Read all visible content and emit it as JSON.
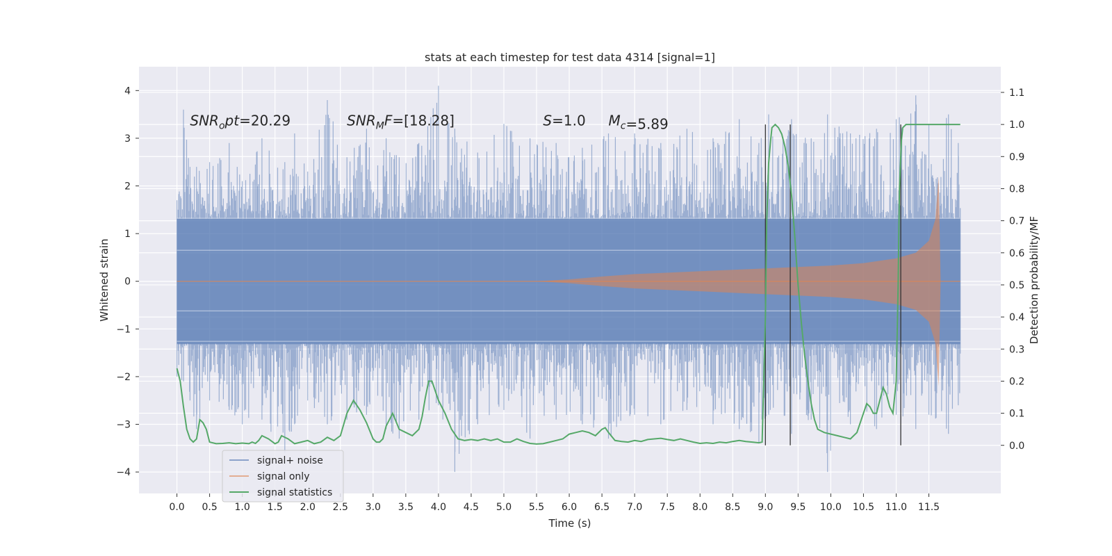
{
  "chart_data": {
    "type": "line",
    "title": "stats at each timestep for test data 4314 [signal=1]",
    "xlabel": "Time (s)",
    "ylabel": "Whitened strain",
    "y2label": "Detection probability/MF",
    "xlim": [
      -0.58,
      12.6
    ],
    "ylim": [
      -4.45,
      4.5
    ],
    "y2lim": [
      -0.15,
      1.18
    ],
    "x_ticks": [
      0.0,
      0.5,
      1.0,
      1.5,
      2.0,
      2.5,
      3.0,
      3.5,
      4.0,
      4.5,
      5.0,
      5.5,
      6.0,
      6.5,
      7.0,
      7.5,
      8.0,
      8.5,
      9.0,
      9.5,
      10.0,
      10.5,
      11.0,
      11.5
    ],
    "x_tick_labels": [
      "0.0",
      "0.5",
      "1.0",
      "1.5",
      "2.0",
      "2.5",
      "3.0",
      "3.5",
      "4.0",
      "4.5",
      "5.0",
      "5.5",
      "6.0",
      "6.5",
      "7.0",
      "7.5",
      "8.0",
      "8.5",
      "9.0",
      "9.5",
      "10.0",
      "10.5",
      "11.0",
      "11.5"
    ],
    "y_ticks": [
      -4,
      -3,
      -2,
      -1,
      0,
      1,
      2,
      3,
      4
    ],
    "y_tick_labels": [
      "−4",
      "−3",
      "−2",
      "−1",
      "0",
      "1",
      "2",
      "3",
      "4"
    ],
    "y2_ticks": [
      0.0,
      0.1,
      0.2,
      0.3,
      0.4,
      0.5,
      0.6,
      0.7,
      0.8,
      0.9,
      1.0,
      1.1
    ],
    "y2_tick_labels": [
      "0.0",
      "0.1",
      "0.2",
      "0.3",
      "0.4",
      "0.5",
      "0.6",
      "0.7",
      "0.8",
      "0.9",
      "1.0",
      "1.1"
    ],
    "grid": true,
    "legend_position": "bottom-left",
    "annotations": [
      {
        "label": "SNR_opt=20.29",
        "x": 0.2,
        "y": 3.27
      },
      {
        "label": "SNR_MF=[18.28]",
        "x": 2.6,
        "y": 3.27
      },
      {
        "label": "S=1.0",
        "x": 5.6,
        "y": 3.27
      },
      {
        "label": "M_c=5.89",
        "x": 6.6,
        "y": 3.27
      }
    ],
    "vertical_lines": [
      9.0,
      9.38,
      11.07
    ],
    "series": [
      {
        "name": "signal+ noise",
        "color": "#4c72b0",
        "description": "whitened noisy strain, roughly ±2 with spikes to ±4",
        "peaks": [
          {
            "t": 0.0,
            "hi": 1.7,
            "lo": -2.0
          },
          {
            "t": 0.1,
            "hi": 3.6,
            "lo": -2.1
          },
          {
            "t": 0.2,
            "hi": 2.4,
            "lo": -2.5
          },
          {
            "t": 0.3,
            "hi": 2.4,
            "lo": -3.1
          },
          {
            "t": 0.5,
            "hi": 2.5,
            "lo": -2.5
          },
          {
            "t": 0.8,
            "hi": 2.9,
            "lo": -2.7
          },
          {
            "t": 1.0,
            "hi": 2.1,
            "lo": -3.0
          },
          {
            "t": 1.3,
            "hi": 3.0,
            "lo": -2.9
          },
          {
            "t": 1.65,
            "hi": 2.5,
            "lo": -3.6
          },
          {
            "t": 1.8,
            "hi": 3.1,
            "lo": -3.0
          },
          {
            "t": 2.0,
            "hi": 2.3,
            "lo": -2.5
          },
          {
            "t": 2.3,
            "hi": 3.8,
            "lo": -3.0
          },
          {
            "t": 2.6,
            "hi": 2.6,
            "lo": -2.9
          },
          {
            "t": 2.9,
            "hi": 3.2,
            "lo": -2.8
          },
          {
            "t": 3.2,
            "hi": 3.0,
            "lo": -3.1
          },
          {
            "t": 3.4,
            "hi": 2.6,
            "lo": -3.3
          },
          {
            "t": 3.7,
            "hi": 2.9,
            "lo": -2.9
          },
          {
            "t": 4.0,
            "hi": 4.1,
            "lo": -2.6
          },
          {
            "t": 4.25,
            "hi": 3.2,
            "lo": -4.0
          },
          {
            "t": 4.6,
            "hi": 2.7,
            "lo": -3.0
          },
          {
            "t": 5.0,
            "hi": 3.3,
            "lo": -2.7
          },
          {
            "t": 5.4,
            "hi": 3.0,
            "lo": -3.3
          },
          {
            "t": 5.8,
            "hi": 2.9,
            "lo": -2.9
          },
          {
            "t": 6.2,
            "hi": 2.8,
            "lo": -3.0
          },
          {
            "t": 6.6,
            "hi": 3.1,
            "lo": -3.3
          },
          {
            "t": 7.0,
            "hi": 3.1,
            "lo": -2.8
          },
          {
            "t": 7.4,
            "hi": 2.9,
            "lo": -3.0
          },
          {
            "t": 7.8,
            "hi": 3.2,
            "lo": -2.7
          },
          {
            "t": 8.2,
            "hi": 3.0,
            "lo": -3.0
          },
          {
            "t": 8.6,
            "hi": 3.4,
            "lo": -3.1
          },
          {
            "t": 8.9,
            "hi": 2.9,
            "lo": -3.4
          },
          {
            "t": 9.05,
            "hi": 3.5,
            "lo": -2.8
          },
          {
            "t": 9.4,
            "hi": 3.4,
            "lo": -3.2
          },
          {
            "t": 9.7,
            "hi": 3.0,
            "lo": -2.9
          },
          {
            "t": 9.95,
            "hi": 3.5,
            "lo": -4.0
          },
          {
            "t": 10.3,
            "hi": 3.1,
            "lo": -3.0
          },
          {
            "t": 10.7,
            "hi": 3.2,
            "lo": -3.1
          },
          {
            "t": 11.0,
            "hi": 3.4,
            "lo": -2.8
          },
          {
            "t": 11.3,
            "hi": 3.9,
            "lo": -3.1
          },
          {
            "t": 11.5,
            "hi": 3.3,
            "lo": -2.8
          },
          {
            "t": 11.8,
            "hi": 3.5,
            "lo": -3.2
          },
          {
            "t": 11.95,
            "hi": 2.9,
            "lo": -2.6
          }
        ]
      },
      {
        "name": "signal only",
        "color": "#dd8452",
        "description": "chirp envelope growing toward merger near 11.65 s",
        "envelope_t": [
          0.0,
          5.5,
          6.0,
          6.5,
          7.0,
          7.5,
          8.0,
          8.5,
          9.0,
          9.5,
          10.0,
          10.5,
          11.0,
          11.3,
          11.5,
          11.6,
          11.65,
          11.68,
          12.0
        ],
        "envelope_amp": [
          0.0,
          0.0,
          0.04,
          0.1,
          0.15,
          0.18,
          0.21,
          0.24,
          0.27,
          0.3,
          0.33,
          0.38,
          0.48,
          0.6,
          0.85,
          1.3,
          2.2,
          0.0,
          0.0
        ]
      },
      {
        "name": "signal statistics",
        "color": "#55a868",
        "axis": "right",
        "x": [
          0.0,
          0.05,
          0.1,
          0.15,
          0.2,
          0.25,
          0.3,
          0.35,
          0.4,
          0.45,
          0.5,
          0.6,
          0.7,
          0.8,
          0.9,
          1.0,
          1.1,
          1.15,
          1.2,
          1.25,
          1.3,
          1.4,
          1.5,
          1.55,
          1.6,
          1.7,
          1.8,
          1.9,
          2.0,
          2.1,
          2.2,
          2.3,
          2.4,
          2.5,
          2.6,
          2.7,
          2.8,
          2.9,
          3.0,
          3.05,
          3.1,
          3.15,
          3.2,
          3.3,
          3.4,
          3.5,
          3.6,
          3.7,
          3.75,
          3.8,
          3.85,
          3.9,
          3.95,
          4.0,
          4.1,
          4.2,
          4.3,
          4.4,
          4.5,
          4.6,
          4.7,
          4.8,
          4.9,
          5.0,
          5.1,
          5.2,
          5.3,
          5.4,
          5.5,
          5.6,
          5.7,
          5.8,
          5.9,
          6.0,
          6.1,
          6.2,
          6.3,
          6.4,
          6.5,
          6.55,
          6.6,
          6.7,
          6.8,
          6.9,
          7.0,
          7.1,
          7.2,
          7.3,
          7.4,
          7.5,
          7.6,
          7.7,
          7.8,
          7.9,
          8.0,
          8.1,
          8.2,
          8.3,
          8.4,
          8.5,
          8.6,
          8.7,
          8.8,
          8.9,
          8.95,
          9.0,
          9.02,
          9.05,
          9.08,
          9.1,
          9.15,
          9.2,
          9.25,
          9.3,
          9.35,
          9.4,
          9.45,
          9.5,
          9.55,
          9.6,
          9.65,
          9.7,
          9.75,
          9.8,
          9.85,
          9.9,
          10.0,
          10.1,
          10.2,
          10.3,
          10.4,
          10.45,
          10.5,
          10.55,
          10.6,
          10.65,
          10.7,
          10.75,
          10.8,
          10.85,
          10.9,
          10.95,
          11.0,
          11.03,
          11.05,
          11.08,
          11.1,
          11.15,
          11.2,
          11.3,
          11.5,
          11.7,
          11.9,
          11.98
        ],
        "values": [
          0.24,
          0.2,
          0.12,
          0.05,
          0.02,
          0.01,
          0.02,
          0.08,
          0.07,
          0.05,
          0.01,
          0.005,
          0.006,
          0.008,
          0.005,
          0.007,
          0.005,
          0.01,
          0.006,
          0.015,
          0.03,
          0.02,
          0.005,
          0.01,
          0.03,
          0.02,
          0.005,
          0.01,
          0.015,
          0.005,
          0.01,
          0.025,
          0.015,
          0.03,
          0.1,
          0.14,
          0.11,
          0.07,
          0.02,
          0.01,
          0.01,
          0.02,
          0.06,
          0.1,
          0.05,
          0.04,
          0.03,
          0.05,
          0.09,
          0.15,
          0.2,
          0.2,
          0.17,
          0.14,
          0.1,
          0.05,
          0.02,
          0.015,
          0.018,
          0.015,
          0.02,
          0.015,
          0.02,
          0.01,
          0.01,
          0.02,
          0.012,
          0.006,
          0.004,
          0.005,
          0.01,
          0.015,
          0.02,
          0.035,
          0.04,
          0.045,
          0.04,
          0.03,
          0.05,
          0.055,
          0.04,
          0.015,
          0.012,
          0.01,
          0.015,
          0.012,
          0.018,
          0.02,
          0.022,
          0.018,
          0.015,
          0.02,
          0.015,
          0.01,
          0.006,
          0.008,
          0.006,
          0.01,
          0.008,
          0.012,
          0.015,
          0.012,
          0.01,
          0.008,
          0.01,
          0.4,
          0.7,
          0.88,
          0.95,
          0.99,
          1.0,
          0.99,
          0.97,
          0.93,
          0.87,
          0.78,
          0.65,
          0.5,
          0.38,
          0.28,
          0.2,
          0.13,
          0.08,
          0.05,
          0.045,
          0.04,
          0.035,
          0.03,
          0.025,
          0.02,
          0.04,
          0.07,
          0.1,
          0.13,
          0.12,
          0.1,
          0.1,
          0.14,
          0.18,
          0.16,
          0.12,
          0.1,
          0.2,
          0.5,
          0.8,
          0.95,
          0.99,
          1.0,
          1.0,
          1.0,
          1.0,
          1.0,
          1.0,
          1.0
        ]
      }
    ]
  },
  "legend": {
    "items": [
      {
        "label": "signal+ noise",
        "color": "#4c72b0"
      },
      {
        "label": "signal only",
        "color": "#dd8452"
      },
      {
        "label": "signal statistics",
        "color": "#55a868"
      }
    ]
  }
}
